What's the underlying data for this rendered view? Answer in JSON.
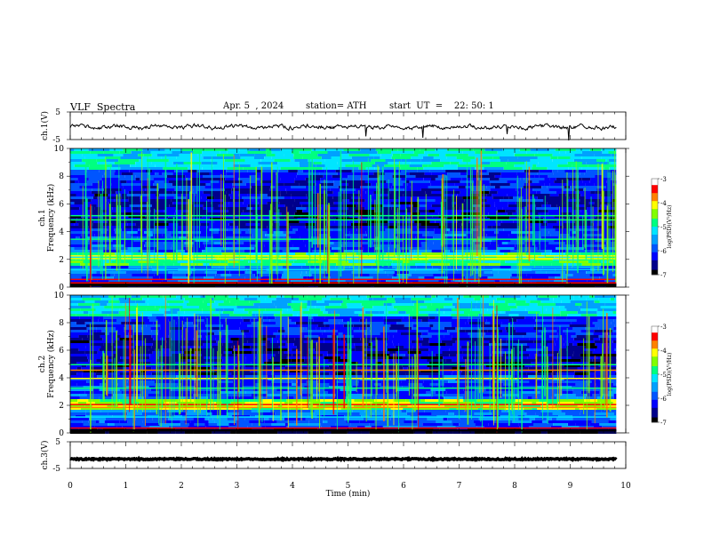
{
  "header": {
    "title": "VLF  Spectra",
    "date": "Apr. 5  , 2024",
    "station": "station= ATH",
    "start": "start  UT  =    22: 50: 1"
  },
  "chart_data": {
    "type": "heatmap",
    "xlabel": "Time  (min)",
    "xlim": [
      0,
      10
    ],
    "xticks": [
      "0",
      "1",
      "2",
      "3",
      "4",
      "5",
      "6",
      "7",
      "8",
      "9",
      "10"
    ],
    "duration_min": 9.83,
    "panels": [
      {
        "name": "ch1-waveform",
        "type": "line",
        "ylabel": "ch.1(V)",
        "ylim": [
          -5,
          5
        ],
        "ytick_labels": [
          "5",
          "-5"
        ],
        "baseline": -0.4,
        "color": "#000000"
      },
      {
        "name": "ch1-spectrogram",
        "type": "heatmap",
        "ylabel": "ch.1\nFrequency  (kHz)",
        "ylim": [
          0,
          10
        ],
        "yticks": [
          "0",
          "2",
          "4",
          "6",
          "8",
          "10"
        ]
      },
      {
        "name": "ch2-spectrogram",
        "type": "heatmap",
        "ylabel": "ch.2\nFrequency  (kHz)",
        "ylim": [
          0,
          10
        ],
        "yticks": [
          "0",
          "2",
          "4",
          "6",
          "8",
          "10"
        ]
      },
      {
        "name": "ch3-waveform",
        "type": "line",
        "ylabel": "ch.3(V)",
        "ylim": [
          -5,
          5
        ],
        "ytick_labels": [
          "5",
          "-5"
        ],
        "baseline": -1.5,
        "color": "#000000"
      }
    ],
    "colorbar": {
      "label": "log(PSD)(V²/Hz)",
      "range": [
        -7,
        -3
      ],
      "ticks": [
        "-3",
        "-4",
        "-5",
        "-6",
        "-7"
      ]
    },
    "colors": [
      "#000000",
      "#00008b",
      "#0000ff",
      "#0055ff",
      "#00a0ff",
      "#00e5ff",
      "#00ff80",
      "#80ff00",
      "#ffff00",
      "#ff8000",
      "#ff0000",
      "#ffffff"
    ]
  }
}
